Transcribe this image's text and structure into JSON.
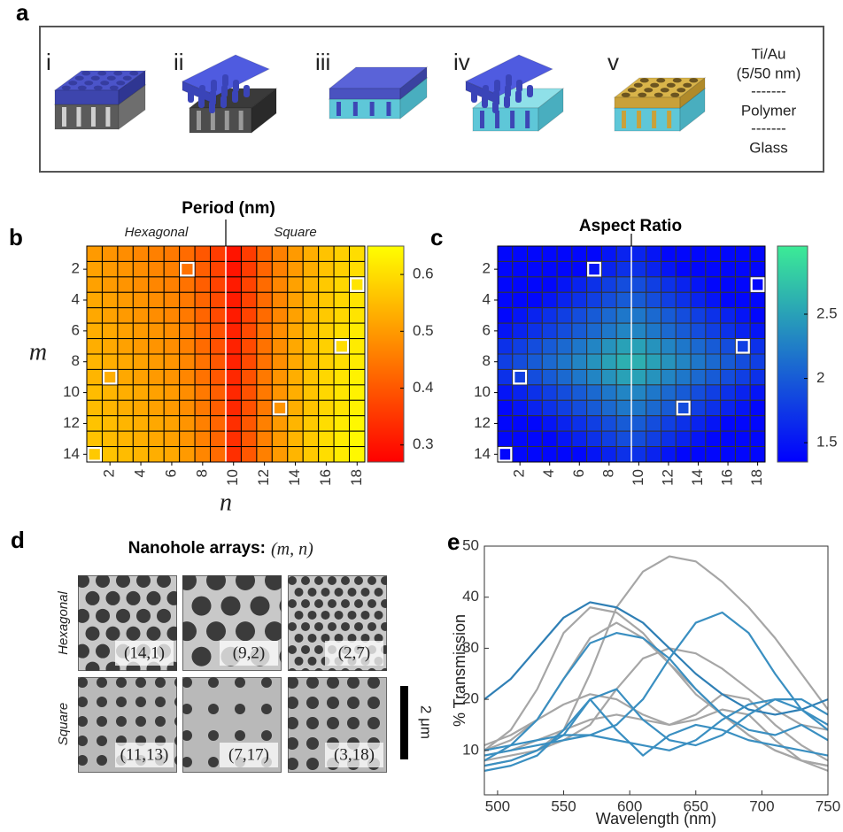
{
  "panel_a": {
    "letter": "a",
    "steps": [
      "i",
      "ii",
      "iii",
      "iv",
      "v"
    ],
    "layers": [
      "Ti/Au",
      "(5/50 nm)",
      "-------",
      "Polymer",
      "-------",
      "Glass"
    ]
  },
  "chart_data": [
    {
      "type": "heatmap",
      "panel": "b",
      "title": "Period (nm)",
      "annotations": [
        "Hexagonal",
        "Square"
      ],
      "xlabel": "n",
      "ylabel": "m",
      "x": [
        1,
        2,
        3,
        4,
        5,
        6,
        7,
        8,
        9,
        10,
        11,
        12,
        13,
        14,
        15,
        16,
        17,
        18
      ],
      "y": [
        1,
        2,
        3,
        4,
        5,
        6,
        7,
        8,
        9,
        10,
        11,
        12,
        13,
        14
      ],
      "xlim": [
        0.5,
        18.5
      ],
      "ylim": [
        14.5,
        0.5
      ],
      "xticks": [
        2,
        4,
        6,
        8,
        10,
        12,
        14,
        16,
        18
      ],
      "yticks": [
        2,
        4,
        6,
        8,
        10,
        12,
        14
      ],
      "colormap": "autumn",
      "clim": [
        0.27,
        0.65
      ],
      "cticks": [
        0.3,
        0.4,
        0.5,
        0.6
      ],
      "values": [
        [
          0.5,
          0.49,
          0.48,
          0.47,
          0.46,
          0.45,
          0.43,
          0.4,
          0.36,
          0.3,
          0.36,
          0.42,
          0.46,
          0.5,
          0.53,
          0.56,
          0.58,
          0.6
        ],
        [
          0.51,
          0.5,
          0.49,
          0.48,
          0.47,
          0.46,
          0.44,
          0.41,
          0.37,
          0.3,
          0.36,
          0.42,
          0.46,
          0.5,
          0.53,
          0.56,
          0.58,
          0.6
        ],
        [
          0.51,
          0.5,
          0.49,
          0.48,
          0.47,
          0.46,
          0.44,
          0.41,
          0.37,
          0.31,
          0.37,
          0.43,
          0.47,
          0.51,
          0.54,
          0.57,
          0.59,
          0.61
        ],
        [
          0.52,
          0.51,
          0.5,
          0.49,
          0.48,
          0.47,
          0.45,
          0.42,
          0.38,
          0.31,
          0.37,
          0.43,
          0.47,
          0.51,
          0.54,
          0.57,
          0.59,
          0.61
        ],
        [
          0.52,
          0.51,
          0.5,
          0.49,
          0.48,
          0.47,
          0.45,
          0.42,
          0.38,
          0.31,
          0.37,
          0.43,
          0.47,
          0.51,
          0.54,
          0.57,
          0.59,
          0.61
        ],
        [
          0.53,
          0.52,
          0.51,
          0.5,
          0.49,
          0.48,
          0.46,
          0.43,
          0.39,
          0.32,
          0.38,
          0.44,
          0.48,
          0.52,
          0.55,
          0.58,
          0.6,
          0.62
        ],
        [
          0.53,
          0.52,
          0.51,
          0.5,
          0.49,
          0.48,
          0.46,
          0.43,
          0.39,
          0.32,
          0.38,
          0.44,
          0.48,
          0.52,
          0.55,
          0.58,
          0.6,
          0.62
        ],
        [
          0.54,
          0.53,
          0.52,
          0.51,
          0.5,
          0.49,
          0.47,
          0.44,
          0.4,
          0.32,
          0.38,
          0.44,
          0.48,
          0.52,
          0.55,
          0.58,
          0.6,
          0.62
        ],
        [
          0.54,
          0.53,
          0.52,
          0.51,
          0.5,
          0.49,
          0.47,
          0.44,
          0.4,
          0.33,
          0.39,
          0.45,
          0.49,
          0.53,
          0.56,
          0.59,
          0.61,
          0.63
        ],
        [
          0.55,
          0.54,
          0.53,
          0.52,
          0.51,
          0.5,
          0.48,
          0.45,
          0.41,
          0.33,
          0.39,
          0.45,
          0.49,
          0.53,
          0.56,
          0.59,
          0.61,
          0.63
        ],
        [
          0.55,
          0.54,
          0.53,
          0.52,
          0.51,
          0.5,
          0.48,
          0.45,
          0.41,
          0.33,
          0.39,
          0.45,
          0.49,
          0.53,
          0.56,
          0.59,
          0.61,
          0.63
        ],
        [
          0.56,
          0.55,
          0.54,
          0.53,
          0.52,
          0.51,
          0.49,
          0.46,
          0.42,
          0.34,
          0.4,
          0.46,
          0.5,
          0.54,
          0.57,
          0.6,
          0.62,
          0.64
        ],
        [
          0.56,
          0.55,
          0.54,
          0.53,
          0.52,
          0.51,
          0.49,
          0.46,
          0.42,
          0.34,
          0.4,
          0.46,
          0.5,
          0.54,
          0.57,
          0.6,
          0.62,
          0.64
        ],
        [
          0.57,
          0.56,
          0.55,
          0.54,
          0.53,
          0.52,
          0.5,
          0.47,
          0.43,
          0.34,
          0.4,
          0.46,
          0.5,
          0.54,
          0.57,
          0.6,
          0.62,
          0.64
        ]
      ],
      "highlights": [
        {
          "m": 2,
          "n": 7
        },
        {
          "m": 3,
          "n": 18
        },
        {
          "m": 7,
          "n": 17
        },
        {
          "m": 9,
          "n": 2
        },
        {
          "m": 11,
          "n": 13
        },
        {
          "m": 14,
          "n": 1
        }
      ]
    },
    {
      "type": "heatmap",
      "panel": "c",
      "title": "Aspect Ratio",
      "x": [
        1,
        2,
        3,
        4,
        5,
        6,
        7,
        8,
        9,
        10,
        11,
        12,
        13,
        14,
        15,
        16,
        17,
        18
      ],
      "y": [
        1,
        2,
        3,
        4,
        5,
        6,
        7,
        8,
        9,
        10,
        11,
        12,
        13,
        14
      ],
      "xlim": [
        0.5,
        18.5
      ],
      "ylim": [
        14.5,
        0.5
      ],
      "xticks": [
        2,
        4,
        6,
        8,
        10,
        12,
        14,
        16,
        18
      ],
      "yticks": [
        2,
        4,
        6,
        8,
        10,
        12,
        14
      ],
      "colormap": "winter",
      "clim": [
        1.35,
        3.03
      ],
      "cticks": [
        1.5,
        2,
        2.5
      ],
      "values": [
        [
          1.4,
          1.4,
          1.4,
          1.4,
          1.4,
          1.4,
          1.4,
          1.5,
          1.6,
          1.6,
          1.5,
          1.4,
          1.4,
          1.4,
          1.4,
          1.4,
          1.4,
          1.4
        ],
        [
          1.4,
          1.4,
          1.4,
          1.4,
          1.4,
          1.4,
          1.5,
          1.6,
          1.7,
          1.7,
          1.6,
          1.5,
          1.4,
          1.4,
          1.4,
          1.4,
          1.4,
          1.4
        ],
        [
          1.4,
          1.4,
          1.4,
          1.4,
          1.5,
          1.6,
          1.7,
          1.8,
          1.9,
          1.9,
          1.8,
          1.7,
          1.6,
          1.5,
          1.4,
          1.4,
          1.4,
          1.4
        ],
        [
          1.4,
          1.4,
          1.4,
          1.5,
          1.6,
          1.7,
          1.8,
          1.9,
          2.0,
          2.0,
          1.9,
          1.8,
          1.7,
          1.6,
          1.5,
          1.4,
          1.4,
          1.4
        ],
        [
          1.4,
          1.5,
          1.6,
          1.7,
          1.8,
          1.9,
          2.0,
          2.1,
          2.2,
          2.2,
          2.1,
          2.0,
          1.9,
          1.8,
          1.7,
          1.6,
          1.5,
          1.4
        ],
        [
          1.5,
          1.6,
          1.7,
          1.8,
          1.9,
          2.0,
          2.1,
          2.2,
          2.3,
          2.3,
          2.2,
          2.1,
          2.0,
          1.9,
          1.8,
          1.7,
          1.6,
          1.5
        ],
        [
          1.7,
          1.8,
          1.9,
          2.0,
          2.1,
          2.2,
          2.3,
          2.4,
          2.5,
          2.5,
          2.4,
          2.3,
          2.2,
          2.1,
          2.0,
          1.9,
          1.8,
          1.7
        ],
        [
          1.8,
          1.9,
          2.0,
          2.1,
          2.2,
          2.3,
          2.4,
          2.5,
          2.6,
          2.6,
          2.5,
          2.4,
          2.3,
          2.2,
          2.1,
          2.0,
          1.9,
          1.8
        ],
        [
          1.7,
          1.8,
          1.9,
          2.0,
          2.1,
          2.2,
          2.3,
          2.4,
          2.5,
          2.5,
          2.4,
          2.3,
          2.2,
          2.1,
          2.0,
          1.9,
          1.8,
          1.7
        ],
        [
          1.5,
          1.6,
          1.7,
          1.8,
          1.9,
          2.0,
          2.1,
          2.2,
          2.3,
          2.3,
          2.2,
          2.1,
          2.0,
          1.9,
          1.8,
          1.7,
          1.6,
          1.5
        ],
        [
          1.4,
          1.5,
          1.6,
          1.7,
          1.8,
          1.9,
          2.0,
          2.1,
          2.2,
          2.2,
          2.1,
          2.0,
          1.9,
          1.8,
          1.7,
          1.6,
          1.5,
          1.4
        ],
        [
          1.4,
          1.4,
          1.4,
          1.5,
          1.6,
          1.7,
          1.8,
          1.9,
          2.0,
          2.0,
          1.9,
          1.8,
          1.7,
          1.6,
          1.5,
          1.4,
          1.4,
          1.4
        ],
        [
          1.4,
          1.4,
          1.4,
          1.4,
          1.5,
          1.6,
          1.7,
          1.8,
          1.9,
          1.9,
          1.8,
          1.7,
          1.6,
          1.5,
          1.4,
          1.4,
          1.4,
          1.4
        ],
        [
          1.4,
          1.4,
          1.4,
          1.4,
          1.4,
          1.4,
          1.5,
          1.6,
          1.7,
          1.7,
          1.6,
          1.5,
          1.4,
          1.4,
          1.4,
          1.4,
          1.4,
          1.4
        ]
      ],
      "highlights": [
        {
          "m": 2,
          "n": 7
        },
        {
          "m": 3,
          "n": 18
        },
        {
          "m": 7,
          "n": 17
        },
        {
          "m": 9,
          "n": 2
        },
        {
          "m": 11,
          "n": 13
        },
        {
          "m": 14,
          "n": 1
        }
      ]
    },
    {
      "type": "line",
      "panel": "e",
      "xlabel": "Wavelength (nm)",
      "ylabel": "% Transmission",
      "xlim": [
        490,
        750
      ],
      "ylim": [
        1.3,
        50
      ],
      "xticks": [
        500,
        550,
        600,
        650,
        700,
        750
      ],
      "yticks": [
        10,
        20,
        30,
        40,
        50
      ],
      "x": [
        490,
        510,
        530,
        550,
        570,
        590,
        610,
        630,
        650,
        670,
        690,
        710,
        730,
        750
      ],
      "series": [
        {
          "color": "#a6a6a6",
          "values": [
            7,
            8,
            10,
            14,
            25,
            38,
            45,
            48,
            47,
            43,
            38,
            32,
            25,
            18
          ]
        },
        {
          "color": "#a6a6a6",
          "values": [
            10,
            14,
            22,
            33,
            38,
            37,
            33,
            27,
            21,
            17,
            13,
            10,
            8,
            7
          ]
        },
        {
          "color": "#a6a6a6",
          "values": [
            10,
            12,
            16,
            24,
            32,
            35,
            32,
            27,
            22,
            17,
            13,
            10,
            8,
            7
          ]
        },
        {
          "color": "#a6a6a6",
          "values": [
            11,
            13,
            16,
            19,
            21,
            20,
            17,
            15,
            17,
            21,
            20,
            15,
            11,
            8
          ]
        },
        {
          "color": "#a6a6a6",
          "values": [
            8,
            9,
            10,
            12,
            15,
            22,
            28,
            30,
            29,
            26,
            22,
            18,
            15,
            14
          ]
        },
        {
          "color": "#a6a6a6",
          "values": [
            9,
            10,
            12,
            14,
            16,
            17,
            16,
            15,
            16,
            18,
            17,
            12,
            8,
            6
          ]
        },
        {
          "color": "#2f7fb5",
          "values": [
            20,
            24,
            30,
            36,
            39,
            38,
            35,
            30,
            25,
            21,
            18,
            17,
            18,
            20
          ]
        },
        {
          "color": "#3a8fc1",
          "values": [
            9,
            10,
            11,
            12,
            13,
            15,
            20,
            28,
            35,
            37,
            33,
            25,
            18,
            14
          ]
        },
        {
          "color": "#3a8fc1",
          "values": [
            8,
            11,
            16,
            24,
            31,
            33,
            32,
            28,
            22,
            17,
            14,
            13,
            15,
            12
          ]
        },
        {
          "color": "#3a8fc1",
          "values": [
            7,
            8,
            10,
            13,
            20,
            22,
            16,
            12,
            11,
            13,
            17,
            20,
            20,
            17
          ]
        },
        {
          "color": "#3a8fc1",
          "values": [
            10,
            11,
            12,
            13,
            13,
            12,
            11,
            10,
            12,
            16,
            19,
            20,
            18,
            15
          ]
        },
        {
          "color": "#3a8fc1",
          "values": [
            6,
            7,
            9,
            14,
            20,
            14,
            9,
            13,
            15,
            14,
            12,
            11,
            10,
            9
          ]
        }
      ]
    }
  ],
  "panel_d": {
    "letter": "d",
    "title": "Nanohole arrays:",
    "title_math": "(m, n)",
    "row_labels": [
      "Hexagonal",
      "Square"
    ],
    "images": [
      [
        "(14,1)",
        "(9,2)",
        "(2,7)"
      ],
      [
        "(11,13)",
        "(7,17)",
        "(3,18)"
      ]
    ],
    "scale_bar": "2 μm"
  }
}
